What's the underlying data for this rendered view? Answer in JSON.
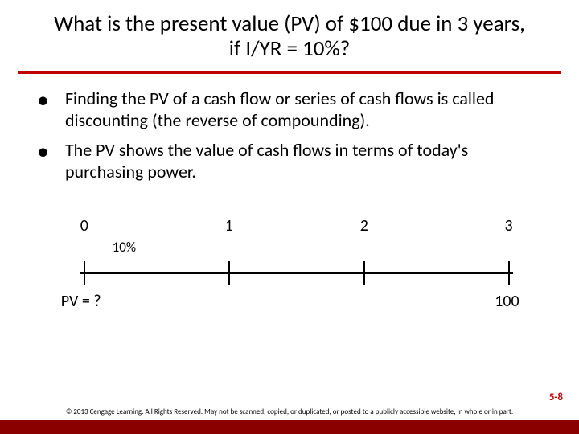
{
  "colors": {
    "accent": "#c00000",
    "deep_red": "#8a0000",
    "text": "#000000",
    "bg": "#ffffff"
  },
  "title": "What is the present value (PV) of $100 due in 3 years, if I/YR = 10%?",
  "bullets": [
    "Finding the PV of a cash flow or series of cash flows is called discounting (the reverse of compounding).",
    "The PV shows the value of cash flows in terms of today's purchasing power."
  ],
  "timeline": {
    "periods": [
      "0",
      "1",
      "2",
      "3"
    ],
    "positions_pct": [
      6,
      37,
      66,
      97
    ],
    "rate_label": "10%",
    "rate_left_pct": 12,
    "line_left_pct": 5,
    "line_right_pct": 98,
    "line_color": "#000000",
    "tick_color": "#000000",
    "bottom_left_label": "PV = ?",
    "bottom_left_pct": 1,
    "bottom_right_label": "100",
    "bottom_right_pct": 94
  },
  "page_number": "5-8",
  "copyright": "© 2013 Cengage Learning. All Rights Reserved. May not be scanned, copied, or duplicated, or posted to a publicly accessible website, in whole or in part."
}
